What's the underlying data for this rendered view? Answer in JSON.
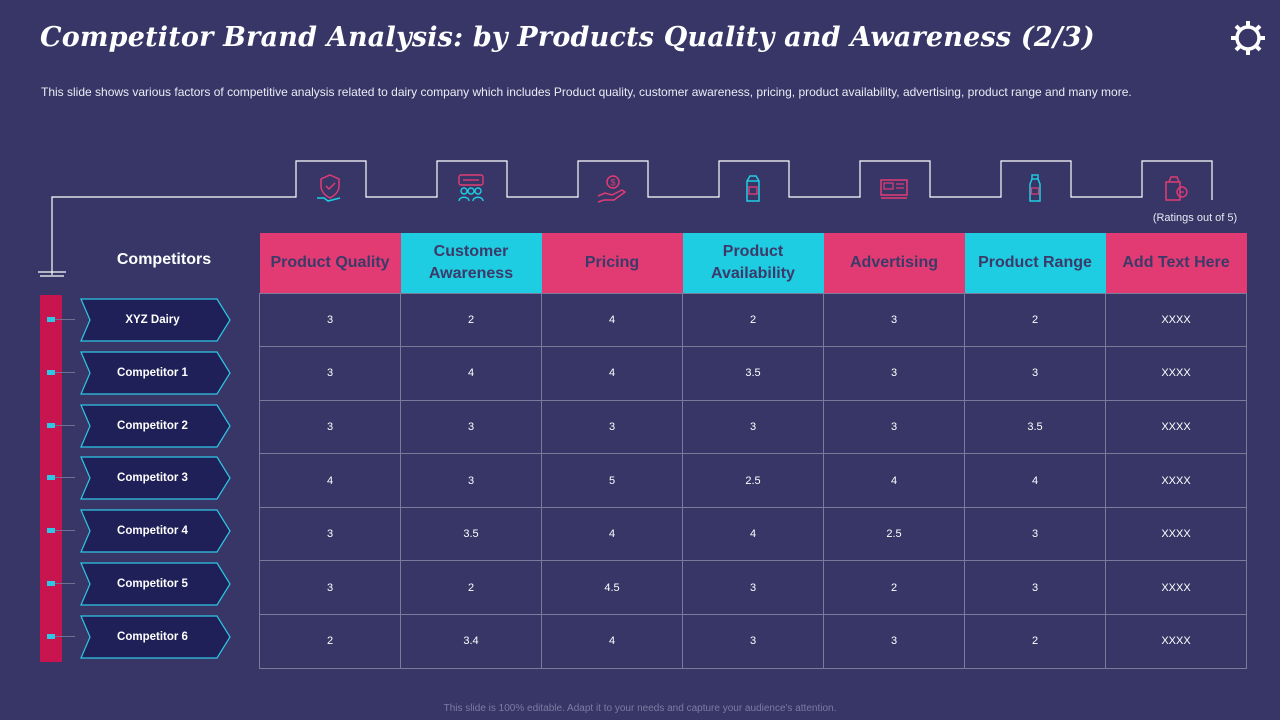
{
  "title": "Competitor Brand Analysis: by Products Quality and Awareness (2/3)",
  "description": "This slide shows various factors of competitive analysis related to dairy company which includes Product quality, customer awareness, pricing, product availability, advertising, product range and many more.",
  "ratings_note": "(Ratings out of 5)",
  "competitors_heading": "Competitors",
  "colors": {
    "background": "#373667",
    "pink": "#e23b74",
    "cyan": "#1fcde3",
    "bar": "#c8154f"
  },
  "columns": [
    {
      "label": "Product Quality",
      "color": "pink",
      "icon": "shield-hand-icon"
    },
    {
      "label": "Customer Awareness",
      "color": "cyan",
      "icon": "people-chat-icon"
    },
    {
      "label": "Pricing",
      "color": "pink",
      "icon": "money-hand-icon"
    },
    {
      "label": "Product Availability",
      "color": "cyan",
      "icon": "milk-carton-icon"
    },
    {
      "label": "Advertising",
      "color": "pink",
      "icon": "billboard-icon"
    },
    {
      "label": "Product Range",
      "color": "cyan",
      "icon": "milk-bottle-icon"
    },
    {
      "label": "Add Text Here",
      "color": "pink",
      "icon": "dairy-product-icon"
    }
  ],
  "rows": [
    {
      "name": "XYZ Dairy",
      "values": [
        "3",
        "2",
        "4",
        "2",
        "3",
        "2",
        "XXXX"
      ]
    },
    {
      "name": "Competitor 1",
      "values": [
        "3",
        "4",
        "4",
        "3.5",
        "3",
        "3",
        "XXXX"
      ]
    },
    {
      "name": "Competitor 2",
      "values": [
        "3",
        "3",
        "3",
        "3",
        "3",
        "3.5",
        "XXXX"
      ]
    },
    {
      "name": "Competitor 3",
      "values": [
        "4",
        "3",
        "5",
        "2.5",
        "4",
        "4",
        "XXXX"
      ]
    },
    {
      "name": "Competitor 4",
      "values": [
        "3",
        "3.5",
        "4",
        "4",
        "2.5",
        "3",
        "XXXX"
      ]
    },
    {
      "name": "Competitor 5",
      "values": [
        "3",
        "2",
        "4.5",
        "3",
        "2",
        "3",
        "XXXX"
      ]
    },
    {
      "name": "Competitor 6",
      "values": [
        "2",
        "3.4",
        "4",
        "3",
        "3",
        "2",
        "XXXX"
      ]
    }
  ],
  "footer": "This slide is 100% editable. Adapt it to your needs and capture your audience's attention."
}
